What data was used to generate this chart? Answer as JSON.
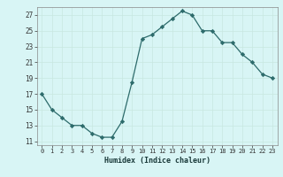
{
  "x": [
    0,
    1,
    2,
    3,
    4,
    5,
    6,
    7,
    8,
    9,
    10,
    11,
    12,
    13,
    14,
    15,
    16,
    17,
    18,
    19,
    20,
    21,
    22,
    23
  ],
  "y": [
    17,
    15,
    14,
    13,
    13,
    12,
    11.5,
    11.5,
    13.5,
    18.5,
    24,
    24.5,
    25.5,
    26.5,
    27.5,
    27,
    25,
    25,
    23.5,
    23.5,
    22,
    21,
    19.5,
    19
  ],
  "line_color": "#2d6b6b",
  "marker_color": "#2d6b6b",
  "bg_color": "#d8f5f5",
  "grid_color": "#c8e8e0",
  "xlabel": "Humidex (Indice chaleur)",
  "yticks": [
    11,
    13,
    15,
    17,
    19,
    21,
    23,
    25,
    27
  ],
  "xticks": [
    0,
    1,
    2,
    3,
    4,
    5,
    6,
    7,
    8,
    9,
    10,
    11,
    12,
    13,
    14,
    15,
    16,
    17,
    18,
    19,
    20,
    21,
    22,
    23
  ],
  "xlim": [
    -0.5,
    23.5
  ],
  "ylim": [
    10.5,
    28
  ]
}
